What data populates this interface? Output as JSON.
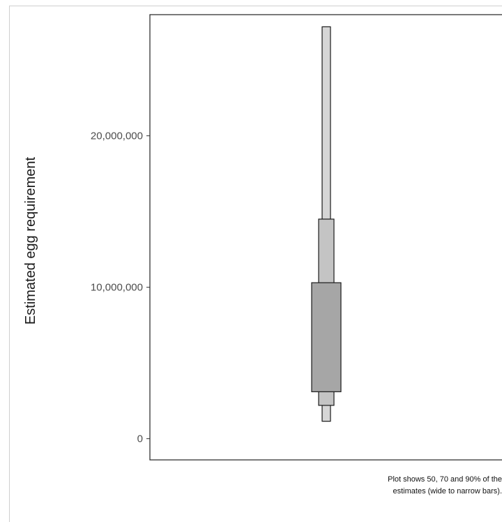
{
  "chart_data": {
    "type": "bar",
    "description_type": "interval-bars",
    "ylabel": "Estimated egg requirement",
    "ylim": [
      -1400000,
      28000000
    ],
    "yticks": [
      {
        "value": 0,
        "label": "0"
      },
      {
        "value": 10000000,
        "label": "10,000,000"
      },
      {
        "value": 20000000,
        "label": "20,000,000"
      }
    ],
    "intervals": [
      {
        "level": "90%",
        "low": 1150000,
        "high": 27200000,
        "color": "#d6d6d6"
      },
      {
        "level": "70%",
        "low": 2200000,
        "high": 14500000,
        "color": "#c4c4c4"
      },
      {
        "level": "50%",
        "low": 3100000,
        "high": 10300000,
        "color": "#a6a6a6"
      }
    ],
    "caption_lines": [
      "Plot shows 50, 70 and 90% of the",
      "estimates (wide to narrow bars)."
    ],
    "grid": false
  }
}
